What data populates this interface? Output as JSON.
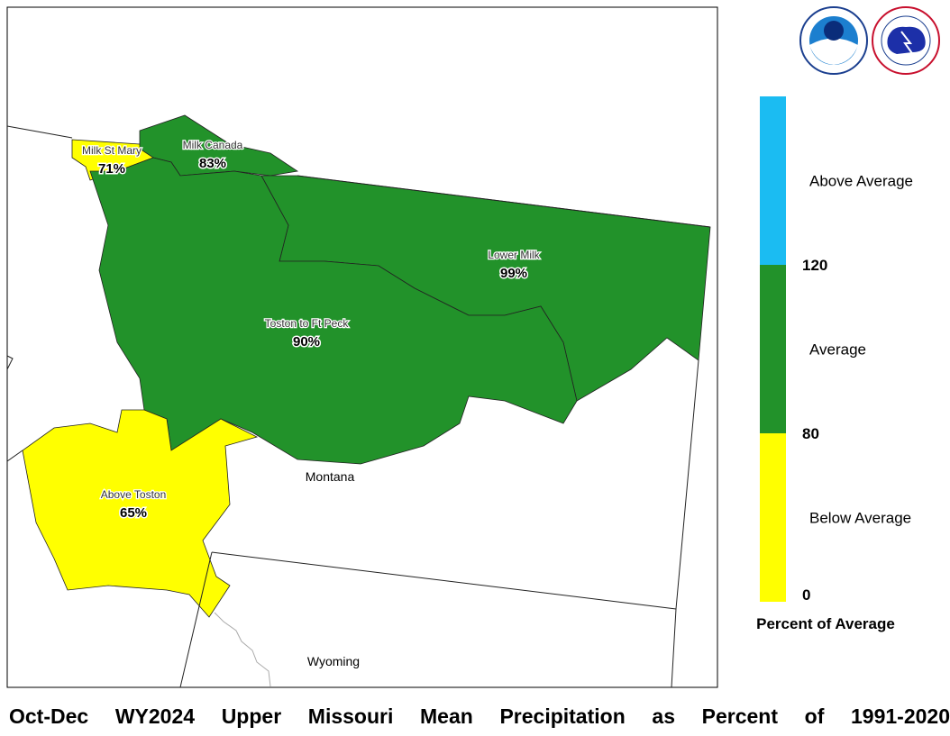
{
  "title": "Oct-Dec WY2024 Upper Missouri Mean Precipitation as Percent of 1991-2020",
  "states": [
    "Montana",
    "Wyoming"
  ],
  "regions": [
    {
      "name": "Milk St Mary",
      "value": 71,
      "value_label": "71%"
    },
    {
      "name": "Milk Canada",
      "value": 83,
      "value_label": "83%"
    },
    {
      "name": "Lower Milk",
      "value": 99,
      "value_label": "99%"
    },
    {
      "name": "Toston to Ft Peck",
      "value": 90,
      "value_label": "90%"
    },
    {
      "name": "Above Toston",
      "value": 65,
      "value_label": "65%"
    }
  ],
  "legend": {
    "title": "Percent of Average",
    "breaks": [
      0,
      80,
      120
    ],
    "classes": [
      {
        "label": "Below Average",
        "color": "#ffff00"
      },
      {
        "label": "Average",
        "color": "#22922a"
      },
      {
        "label": "Above Average",
        "color": "#1bbcf2"
      }
    ]
  }
}
